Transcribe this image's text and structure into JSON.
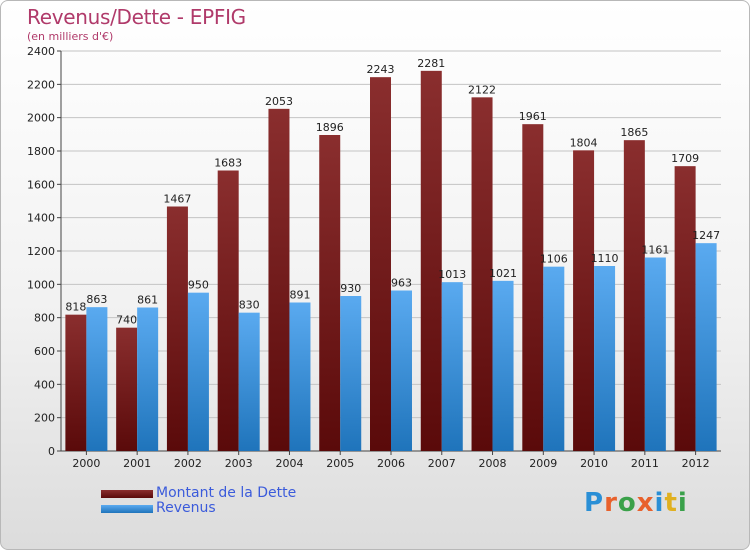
{
  "title": "Revenus/Dette - EPFIG",
  "subtitle": "(en milliers d'€)",
  "logo": {
    "text": "Proxiti"
  },
  "colors": {
    "debt_top": "#8a2e2e",
    "debt_bottom": "#5a0a0a",
    "revenue_top": "#5aaaf0",
    "revenue_bottom": "#1f74bb",
    "title": "#b03a6a",
    "legend_text": "#3b5bdb"
  },
  "chart_data": {
    "type": "bar",
    "title": "Revenus/Dette - EPFIG",
    "subtitle": "(en milliers d'€)",
    "categories": [
      "2000",
      "2001",
      "2002",
      "2003",
      "2004",
      "2005",
      "2006",
      "2007",
      "2008",
      "2009",
      "2010",
      "2011",
      "2012"
    ],
    "series": [
      {
        "name": "Montant de la Dette",
        "values": [
          818,
          740,
          1467,
          1683,
          2053,
          1896,
          2243,
          2281,
          2122,
          1961,
          1804,
          1865,
          1709
        ]
      },
      {
        "name": "Revenus",
        "values": [
          863,
          861,
          950,
          830,
          891,
          930,
          963,
          1013,
          1021,
          1106,
          1110,
          1161,
          1247
        ]
      }
    ],
    "ylim": [
      0,
      2400
    ],
    "yticks": [
      "0",
      "200",
      "400",
      "600",
      "800",
      "1000",
      "1200",
      "1400",
      "1600",
      "1800",
      "2000",
      "2200",
      "2400"
    ],
    "grid": true,
    "legend": "bottom-left"
  }
}
